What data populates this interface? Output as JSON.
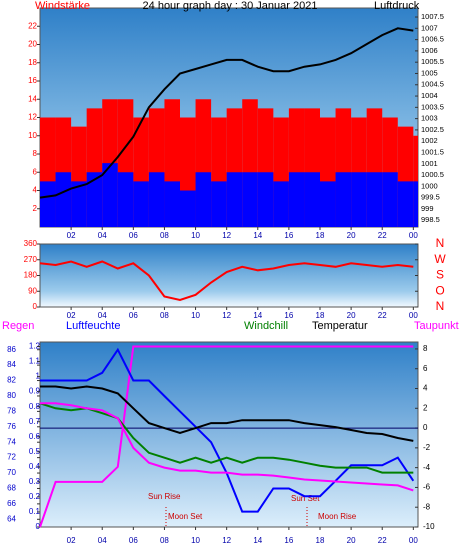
{
  "chart_data": [
    {
      "type": "line",
      "title": "24 hour graph day : 30 Januar 2021",
      "y_label": "Windstärke",
      "y2_label": "Luftdruck",
      "x": [
        0,
        1,
        2,
        3,
        4,
        5,
        6,
        7,
        8,
        9,
        10,
        11,
        12,
        13,
        14,
        15,
        16,
        17,
        18,
        19,
        20,
        21,
        22,
        23,
        24
      ],
      "xlim": [
        0,
        24.3
      ],
      "xticks": [
        {
          "value": 2,
          "label": "02"
        },
        {
          "value": 4,
          "label": "04"
        },
        {
          "value": 6,
          "label": "06"
        },
        {
          "value": 8,
          "label": "08"
        },
        10,
        12,
        14,
        16,
        18,
        20,
        22,
        {
          "value": 24,
          "label": "00"
        }
      ],
      "ylim": [
        0,
        24
      ],
      "yticks": [
        2,
        4,
        6,
        8,
        10,
        12,
        14,
        16,
        18,
        20,
        22
      ],
      "y2lim": [
        998.2,
        1007.9
      ],
      "y2ticks": [
        998.5,
        999,
        999.5,
        1000,
        1000.5,
        1001,
        1001.5,
        1002,
        1002.5,
        1003,
        1003.5,
        1004,
        1004.5,
        1005,
        1005.5,
        1006,
        1006.5,
        1007,
        1007.5
      ],
      "series": [
        {
          "type": "bar",
          "color": "#ff0000",
          "values": [
            12,
            12,
            11,
            13,
            14,
            14,
            12,
            13,
            14,
            12,
            14,
            12,
            13,
            14,
            13,
            12,
            13,
            13,
            12,
            13,
            12,
            13,
            12,
            11,
            10
          ]
        },
        {
          "type": "bar",
          "color": "#0000ff",
          "values": [
            5,
            6,
            5,
            6,
            7,
            6,
            5,
            6,
            5,
            4,
            6,
            5,
            6,
            6,
            6,
            5,
            6,
            6,
            5,
            6,
            6,
            6,
            6,
            5,
            5
          ]
        },
        {
          "color": "#000000",
          "axis": "y2",
          "values": [
            999.5,
            999.6,
            999.9,
            1000.1,
            1000.5,
            1001.3,
            1002.2,
            1003.5,
            1004.3,
            1005.0,
            1005.2,
            1005.4,
            1005.6,
            1005.6,
            1005.3,
            1005.1,
            1005.1,
            1005.3,
            1005.4,
            1005.6,
            1005.9,
            1006.3,
            1006.7,
            1007.0,
            1006.9
          ]
        }
      ]
    },
    {
      "type": "line",
      "x": [
        0,
        1,
        2,
        3,
        4,
        5,
        6,
        7,
        8,
        9,
        10,
        11,
        12,
        13,
        14,
        15,
        16,
        17,
        18,
        19,
        20,
        21,
        22,
        23,
        24
      ],
      "xlim": [
        0,
        24.3
      ],
      "xticks": [
        {
          "value": 2,
          "label": "02"
        },
        {
          "value": 4,
          "label": "04"
        },
        {
          "value": 6,
          "label": "06"
        },
        {
          "value": 8,
          "label": "08"
        },
        10,
        12,
        14,
        16,
        18,
        20,
        22,
        {
          "value": 24,
          "label": "00"
        }
      ],
      "ylim": [
        0,
        360
      ],
      "yticks": [
        0,
        90,
        180,
        270,
        360
      ],
      "y2lim": [
        0,
        360
      ],
      "y2ticks": [
        {
          "value": 360,
          "label": "N"
        },
        {
          "value": 270,
          "label": "W"
        },
        {
          "value": 180,
          "label": "S"
        },
        {
          "value": 90,
          "label": "O"
        },
        {
          "value": 0,
          "label": "N"
        }
      ],
      "series": [
        {
          "color": "#ff0000",
          "values": [
            250,
            240,
            260,
            230,
            260,
            220,
            250,
            180,
            60,
            40,
            70,
            140,
            200,
            230,
            210,
            220,
            240,
            250,
            240,
            230,
            250,
            240,
            230,
            240,
            230
          ]
        }
      ]
    },
    {
      "type": "line",
      "x": [
        0,
        1,
        2,
        3,
        4,
        5,
        6,
        7,
        8,
        9,
        10,
        11,
        12,
        13,
        14,
        15,
        16,
        17,
        18,
        19,
        20,
        21,
        22,
        23,
        24
      ],
      "xlim": [
        0,
        24.3
      ],
      "xticks": [
        {
          "value": 2,
          "label": "02"
        },
        {
          "value": 4,
          "label": "04"
        },
        {
          "value": 6,
          "label": "06"
        },
        {
          "value": 8,
          "label": "08"
        },
        10,
        12,
        14,
        16,
        18,
        20,
        22,
        {
          "value": 24,
          "label": "00"
        }
      ],
      "ylim": [
        0,
        1.23
      ],
      "yticks": [
        0,
        0.1,
        0.2,
        0.3,
        0.4,
        0.5,
        0.6,
        0.7,
        0.8,
        0.9,
        1,
        1.1,
        1.2
      ],
      "y3lim": [
        63,
        87
      ],
      "y3ticks": [
        64,
        66,
        68,
        70,
        72,
        74,
        76,
        78,
        80,
        82,
        84,
        86
      ],
      "y2lim": [
        -10,
        8.7
      ],
      "y2ticks": [
        -10,
        -8,
        -6,
        -4,
        -2,
        0,
        2,
        4,
        6,
        8
      ],
      "annotations": [
        "Sun Rise",
        "Moon Set",
        "Sun Set",
        "Moon Rise"
      ],
      "series": [
        {
          "name": "Regen",
          "color": "#ff00ff",
          "axis": "y",
          "values": [
            0,
            0.3,
            0.3,
            0.3,
            0.3,
            0.4,
            1.2,
            1.2,
            1.2,
            1.2,
            1.2,
            1.2,
            1.2,
            1.2,
            1.2,
            1.2,
            1.2,
            1.2,
            1.2,
            1.2,
            1.2,
            1.2,
            1.2,
            1.2,
            1.2
          ]
        },
        {
          "name": "Luftfeuchte",
          "color": "#0000ff",
          "axis": "y3",
          "values": [
            82,
            82,
            82,
            82,
            83,
            86,
            82,
            82,
            80,
            78,
            76,
            74,
            70,
            65,
            65,
            68,
            68,
            67,
            67,
            69,
            71,
            71,
            71,
            72,
            69
          ]
        },
        {
          "name": "Windchill",
          "color": "#008000",
          "axis": "y2",
          "values": [
            2.5,
            2,
            1.8,
            2,
            1.5,
            1,
            -1,
            -2.5,
            -3,
            -3.5,
            -3,
            -3.5,
            -3,
            -3.5,
            -3,
            -3,
            -3.2,
            -3.5,
            -3.8,
            -4,
            -4,
            -4,
            -4.5,
            -4.5,
            -4.5
          ]
        },
        {
          "name": "Temperatur",
          "color": "#000000",
          "axis": "y2",
          "values": [
            4.2,
            4.2,
            4,
            4.2,
            4,
            3.5,
            2,
            0.5,
            0,
            -0.5,
            0,
            0.5,
            0.5,
            0.8,
            0.8,
            0.8,
            0.8,
            0.5,
            0.3,
            0.1,
            -0.2,
            -0.5,
            -0.6,
            -1,
            -1.3
          ]
        },
        {
          "name": "Taupunkt",
          "color": "#ff00ff",
          "axis": "y2",
          "values": [
            2.5,
            2.5,
            2.3,
            2,
            1.8,
            1,
            -2,
            -3.5,
            -4,
            -4.3,
            -4.3,
            -4.5,
            -4.5,
            -4.7,
            -4.7,
            -4.8,
            -5,
            -5.2,
            -5.3,
            -5.4,
            -5.5,
            -5.6,
            -5.7,
            -5.8,
            -6.3
          ]
        }
      ]
    }
  ]
}
